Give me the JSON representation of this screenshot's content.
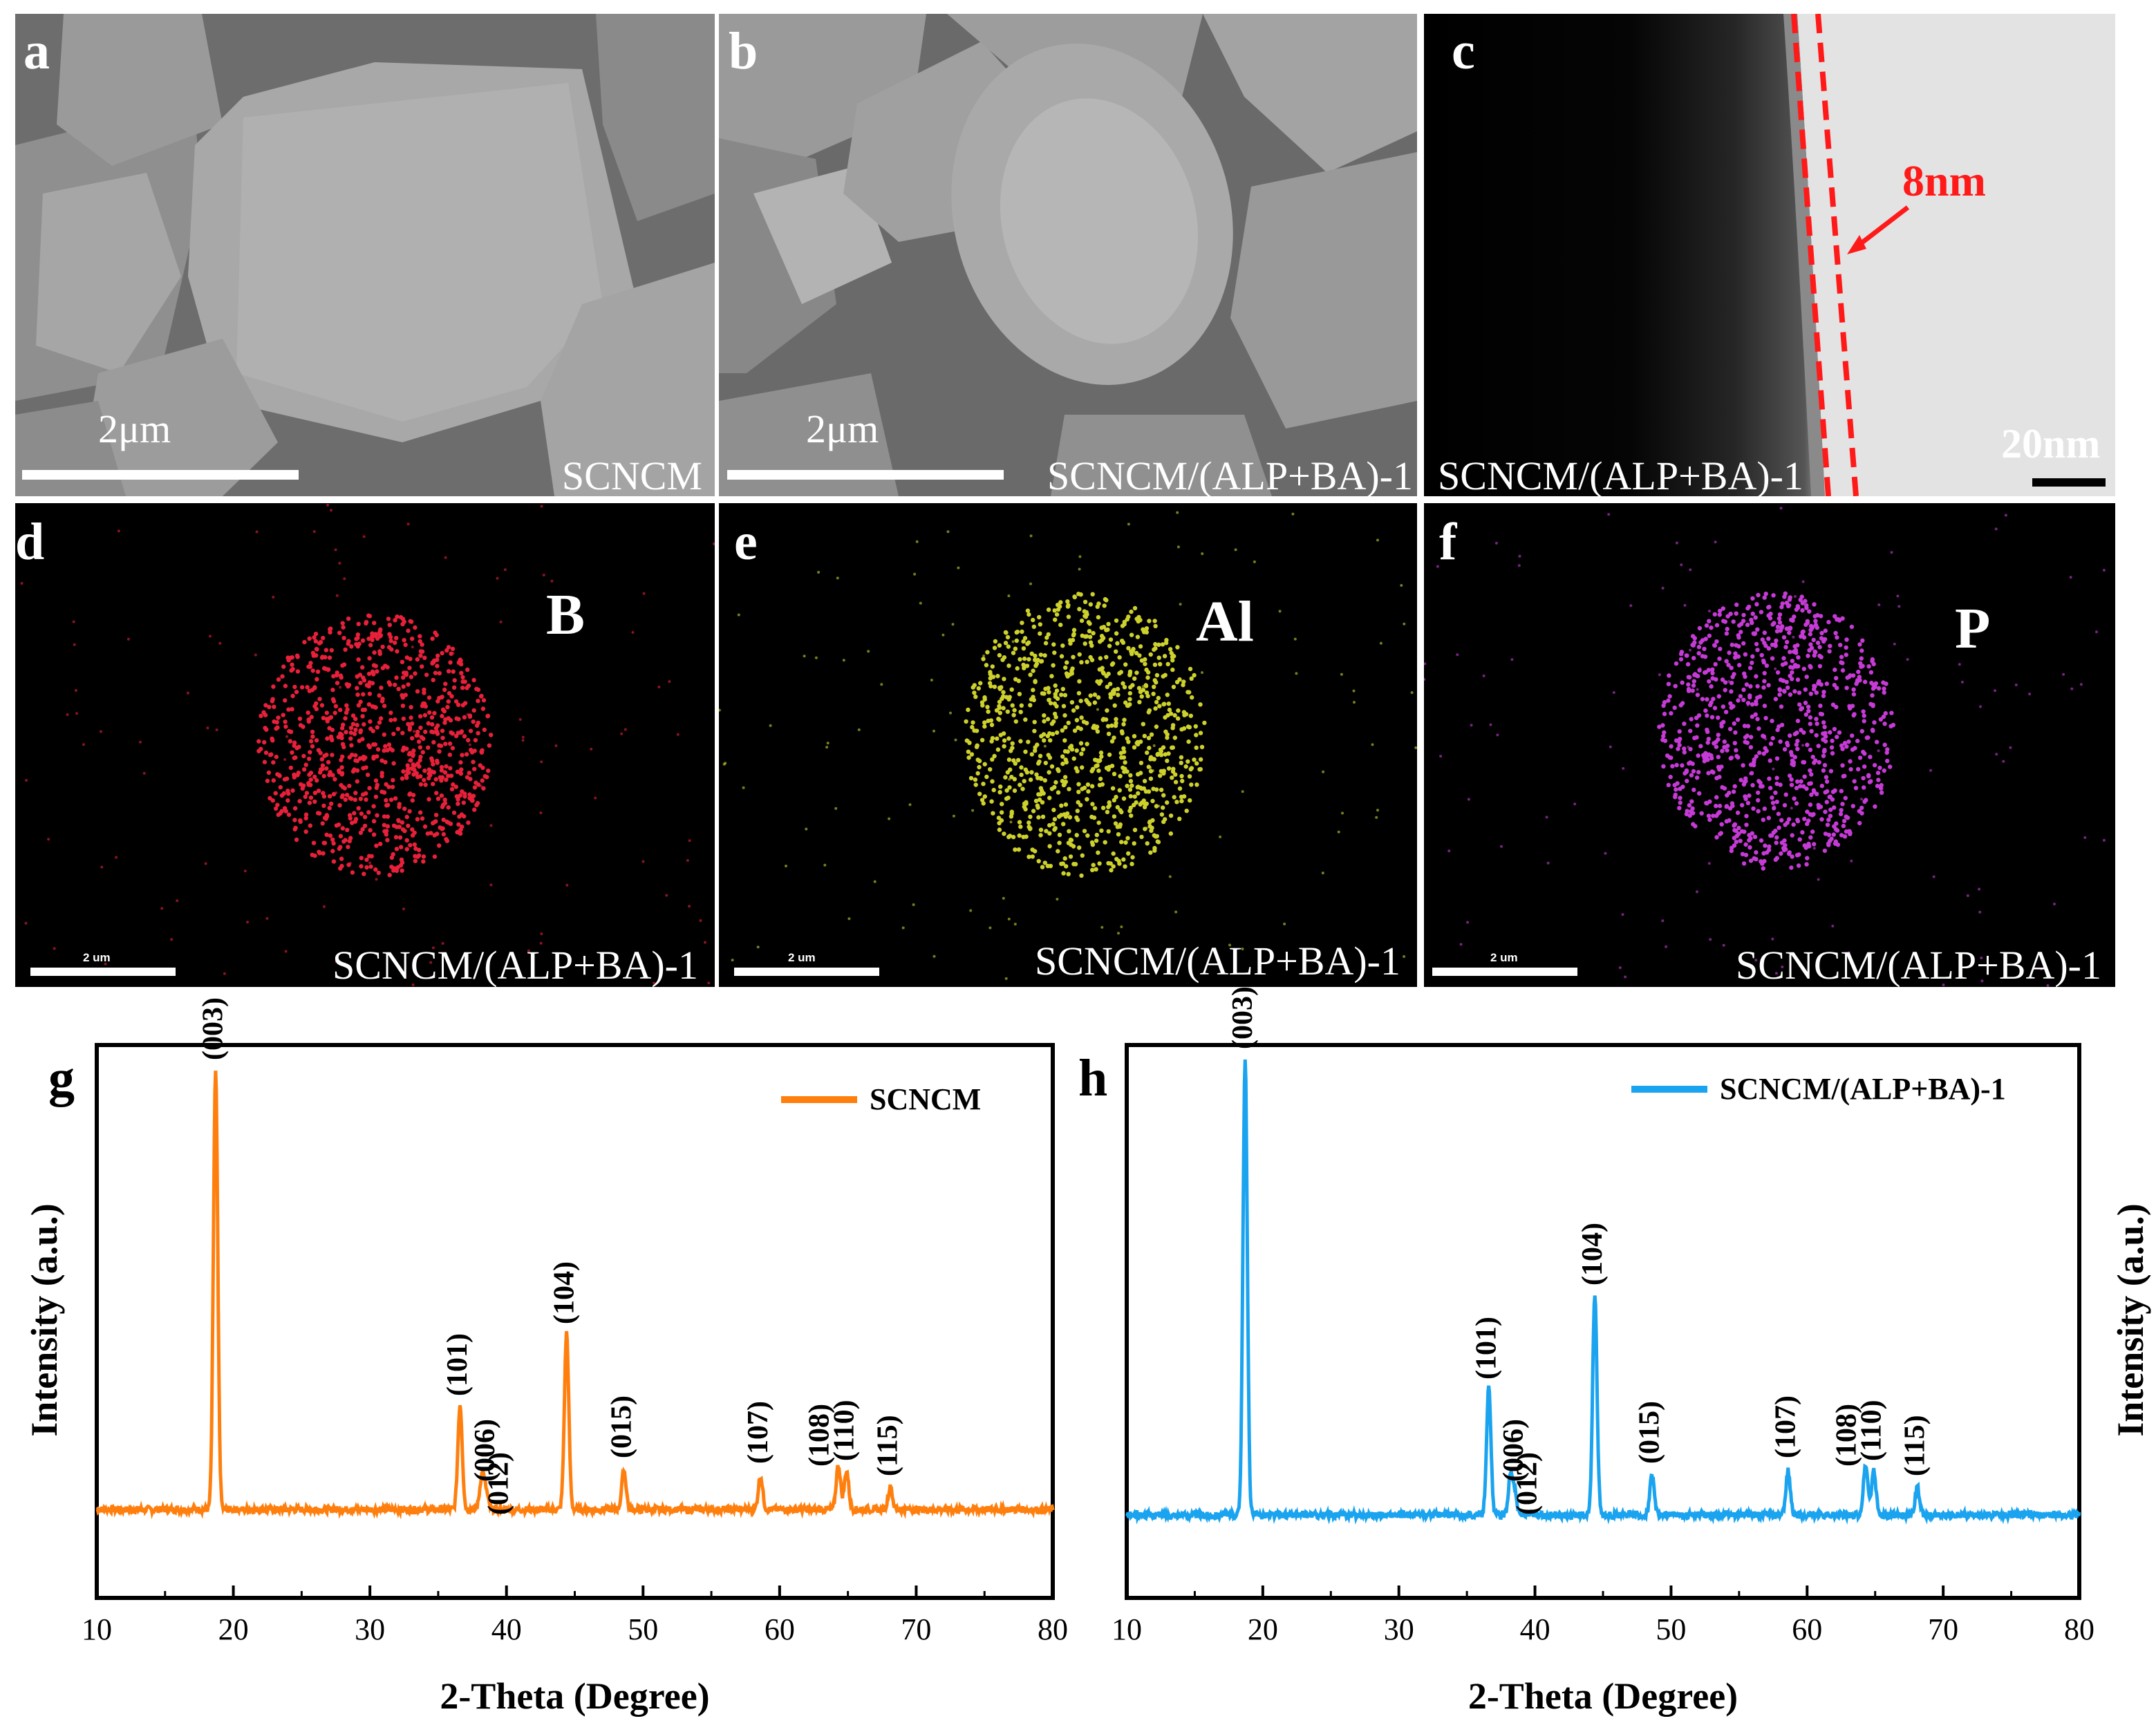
{
  "colors": {
    "scncm_line": "#ff7f0e",
    "coated_line": "#1aa3ef",
    "red_annotation": "#ff1a1a",
    "boron_dots": "#e8203a",
    "aluminum_dots": "#cdd12c",
    "phosphorus_dots": "#c63ad6"
  },
  "panels": {
    "a": {
      "label": "a",
      "scale": "2μm",
      "caption": "SCNCM"
    },
    "b": {
      "label": "b",
      "scale": "2μm",
      "caption": "SCNCM/(ALP+BA)-1"
    },
    "c": {
      "label": "c",
      "thickness": "8nm",
      "scale": "20nm",
      "caption": "SCNCM/(ALP+BA)-1"
    },
    "d": {
      "label": "d",
      "element": "B",
      "scale": "2 um",
      "caption": "SCNCM/(ALP+BA)-1"
    },
    "e": {
      "label": "e",
      "element": "Al",
      "scale": "2 um",
      "caption": "SCNCM/(ALP+BA)-1"
    },
    "f": {
      "label": "f",
      "element": "P",
      "scale": "2 um",
      "caption": "SCNCM/(ALP+BA)-1"
    }
  },
  "chart_data": [
    {
      "type": "line",
      "panel_label": "g",
      "series_name": "SCNCM",
      "xlabel": "2-Theta (Degree)",
      "ylabel": "Intensity (a.u.)",
      "xlim": [
        10,
        80
      ],
      "ylim": [
        0,
        1
      ],
      "x_ticks": [
        10,
        20,
        30,
        40,
        50,
        60,
        70,
        80
      ],
      "baseline": 0.16,
      "peaks": [
        {
          "x": 18.7,
          "y": 0.95,
          "label": "(003)"
        },
        {
          "x": 36.6,
          "y": 0.35,
          "label": "(101)"
        },
        {
          "x": 38.2,
          "y": 0.22,
          "label": "(006)"
        },
        {
          "x": 38.5,
          "y": 0.19,
          "label": "(012)"
        },
        {
          "x": 44.4,
          "y": 0.48,
          "label": "(104)"
        },
        {
          "x": 48.6,
          "y": 0.23,
          "label": "(015)"
        },
        {
          "x": 58.6,
          "y": 0.22,
          "label": "(107)"
        },
        {
          "x": 64.3,
          "y": 0.24,
          "label": "(108)"
        },
        {
          "x": 64.9,
          "y": 0.23,
          "label": "(110)"
        },
        {
          "x": 68.1,
          "y": 0.2,
          "label": "(115)"
        }
      ]
    },
    {
      "type": "line",
      "panel_label": "h",
      "series_name": "SCNCM/(ALP+BA)-1",
      "xlabel": "2-Theta (Degree)",
      "ylabel": "Intensity (a.u.)",
      "xlim": [
        10,
        80
      ],
      "ylim": [
        0,
        1
      ],
      "x_ticks": [
        10,
        20,
        30,
        40,
        50,
        60,
        70,
        80
      ],
      "baseline": 0.15,
      "peaks": [
        {
          "x": 18.7,
          "y": 0.97,
          "label": "(003)"
        },
        {
          "x": 36.6,
          "y": 0.38,
          "label": "(101)"
        },
        {
          "x": 38.2,
          "y": 0.22,
          "label": "(006)"
        },
        {
          "x": 38.5,
          "y": 0.19,
          "label": "(012)"
        },
        {
          "x": 44.4,
          "y": 0.55,
          "label": "(104)"
        },
        {
          "x": 48.6,
          "y": 0.22,
          "label": "(015)"
        },
        {
          "x": 58.6,
          "y": 0.23,
          "label": "(107)"
        },
        {
          "x": 64.3,
          "y": 0.24,
          "label": "(108)"
        },
        {
          "x": 64.9,
          "y": 0.23,
          "label": "(110)"
        },
        {
          "x": 68.1,
          "y": 0.2,
          "label": "(115)"
        }
      ]
    }
  ]
}
